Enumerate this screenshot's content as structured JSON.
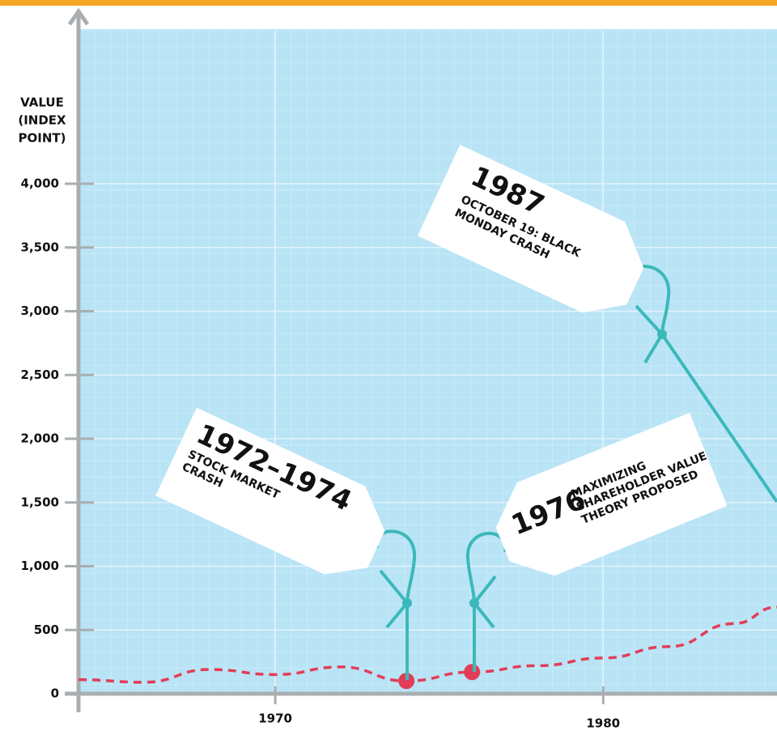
{
  "chart_data": {
    "type": "line",
    "y_label": [
      "VALUE",
      "(INDEX",
      "POINT)"
    ],
    "x": [
      1964,
      1966,
      1968,
      1970,
      1972,
      1974,
      1976,
      1978,
      1980,
      1982,
      1984,
      1985.3
    ],
    "values": [
      110,
      90,
      190,
      150,
      210,
      100,
      170,
      220,
      280,
      370,
      550,
      680
    ],
    "color": "#e23d58",
    "xlim": [
      1964,
      1985.3
    ],
    "xticks": [
      1970,
      1980
    ],
    "ylim": [
      0,
      5200
    ],
    "yticks": [
      0,
      500,
      {
        "value": 1000,
        "label": "1,000"
      },
      {
        "value": 1500,
        "label": "1,500"
      },
      {
        "value": 2000,
        "label": "2,000"
      },
      {
        "value": 2500,
        "label": "2,500"
      },
      {
        "value": 3000,
        "label": "3,000"
      },
      {
        "value": 3500,
        "label": "3,500"
      },
      {
        "value": 4000,
        "label": "4,000"
      }
    ],
    "annotations": [
      {
        "title": "1972–1974",
        "lines": [
          "STOCK MARKET",
          "CRASH"
        ]
      },
      {
        "title": "1976",
        "lines": [
          "MAXIMIZING",
          "SHAREHOLDER VALUE",
          "THEORY PROPOSED"
        ]
      },
      {
        "title": "1987",
        "lines": [
          "OCTOBER 19: BLACK",
          "MONDAY CRASH"
        ]
      }
    ]
  }
}
